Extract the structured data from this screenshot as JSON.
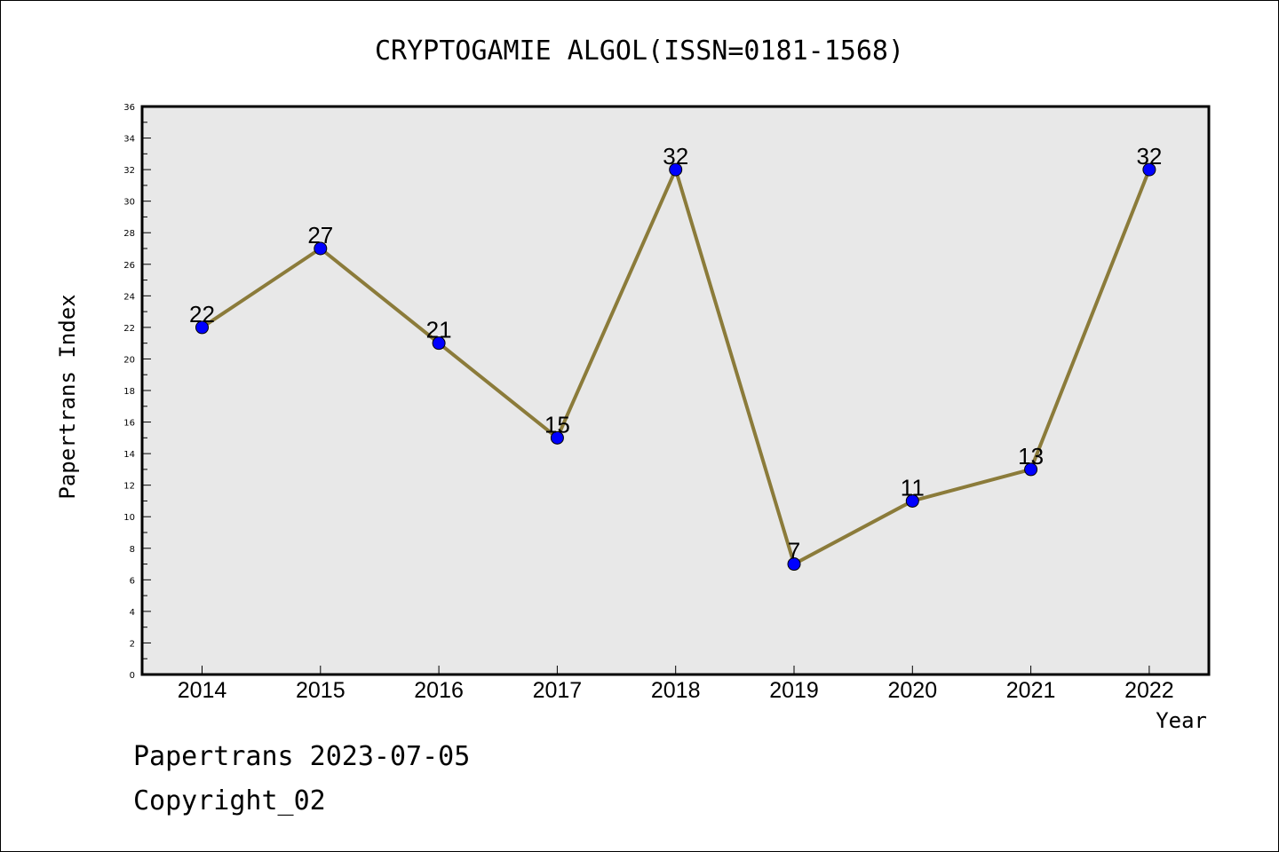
{
  "footer": {
    "stamp": "Papertrans 2023-07-05",
    "copyright": "Copyright_02"
  },
  "chart_data": {
    "type": "line",
    "title": "CRYPTOGAMIE ALGOL(ISSN=0181-1568)",
    "xlabel": "Year",
    "ylabel": "Papertrans Index",
    "categories": [
      "2014",
      "2015",
      "2016",
      "2017",
      "2018",
      "2019",
      "2020",
      "2021",
      "2022"
    ],
    "series": [
      {
        "values": [
          22,
          27,
          21,
          15,
          32,
          7,
          11,
          13,
          32
        ]
      }
    ],
    "data_labels": [
      "22",
      "27",
      "21",
      "15",
      "32",
      "7",
      "11",
      "13",
      "32"
    ],
    "ylim": [
      0,
      36
    ],
    "yticks": [
      "0",
      "2",
      "4",
      "6",
      "8",
      "10",
      "12",
      "14",
      "16",
      "18",
      "20",
      "22",
      "24",
      "26",
      "28",
      "30",
      "32",
      "34",
      "36"
    ],
    "grid": false,
    "legend": "none",
    "colors": {
      "plot_background": "#e8e8e8",
      "line": "#8b7b3a",
      "marker": "#0000ff",
      "marker_edge": "#000000"
    }
  }
}
